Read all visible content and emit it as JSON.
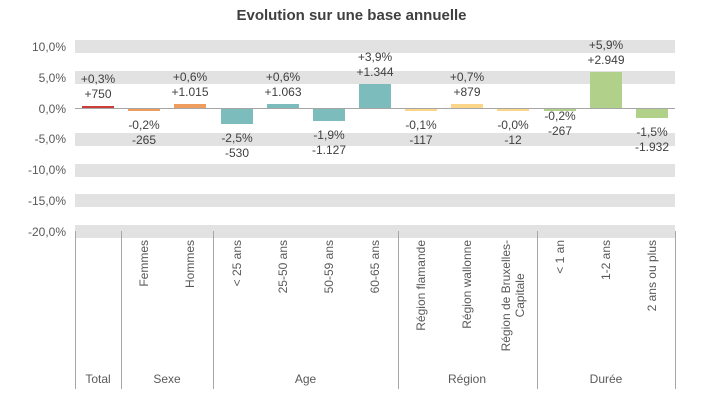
{
  "chart_data": {
    "type": "bar",
    "title": "Evolution sur une base annuelle",
    "value_format": "percent with absolute count label",
    "grid": "horizontal gray bands at 5% steps",
    "legend_position": "none",
    "ylim": [
      -20,
      10
    ],
    "y_axis": {
      "ticks": [
        {
          "label": "10,0%",
          "value": 10
        },
        {
          "label": "5,0%",
          "value": 5
        },
        {
          "label": "0,0%",
          "value": 0
        },
        {
          "label": "-5,0%",
          "value": -5
        },
        {
          "label": "-10,0%",
          "value": -10
        },
        {
          "label": "-15,0%",
          "value": -15
        },
        {
          "label": "-20,0%",
          "value": -20
        }
      ]
    },
    "groups": [
      {
        "name": "Total",
        "color": "#cb3d38",
        "items": [
          {
            "category": "",
            "pct": 0.3,
            "pct_label": "+0,3%",
            "abs_label": "+750"
          }
        ]
      },
      {
        "name": "Sexe",
        "color": "#ee9d5e",
        "items": [
          {
            "category": "Femmes",
            "pct": -0.2,
            "pct_label": "-0,2%",
            "abs_label": "-265"
          },
          {
            "category": "Hommes",
            "pct": 0.6,
            "pct_label": "+0,6%",
            "abs_label": "+1.015"
          }
        ]
      },
      {
        "name": "Age",
        "color": "#7dbcbc",
        "items": [
          {
            "category": "< 25 ans",
            "pct": -2.5,
            "pct_label": "-2,5%",
            "abs_label": "-530"
          },
          {
            "category": "25-50 ans",
            "pct": 0.6,
            "pct_label": "+0,6%",
            "abs_label": "+1.063"
          },
          {
            "category": "50-59 ans",
            "pct": -1.9,
            "pct_label": "-1,9%",
            "abs_label": "-1.127"
          },
          {
            "category": "60-65 ans",
            "pct": 3.9,
            "pct_label": "+3,9%",
            "abs_label": "+1.344"
          }
        ]
      },
      {
        "name": "Région",
        "color": "#fbd689",
        "items": [
          {
            "category": "Région flamande",
            "pct": -0.1,
            "pct_label": "-0,1%",
            "abs_label": "-117"
          },
          {
            "category": "Région wallonne",
            "pct": 0.7,
            "pct_label": "+0,7%",
            "abs_label": "+879"
          },
          {
            "category": "Région de Bruxelles-\nCapitale",
            "pct": -0.0,
            "pct_label": "-0,0%",
            "abs_label": "-12"
          }
        ]
      },
      {
        "name": "Durée",
        "color": "#b1d18b",
        "items": [
          {
            "category": "< 1 an",
            "pct": -0.2,
            "pct_label": "-0,2%",
            "abs_label": "-267",
            "label_dy": -9
          },
          {
            "category": "1-2 ans",
            "pct": 5.9,
            "pct_label": "+5,9%",
            "abs_label": "+2.949"
          },
          {
            "category": "2 ans ou plus",
            "pct": -1.5,
            "pct_label": "-1,5%",
            "abs_label": "-1.932"
          }
        ]
      }
    ],
    "style_colors": {
      "band_gray": "#e2e2e2",
      "axis_gray": "#a6a6a6",
      "label_text": "#404040",
      "axis_text": "#595959"
    }
  }
}
